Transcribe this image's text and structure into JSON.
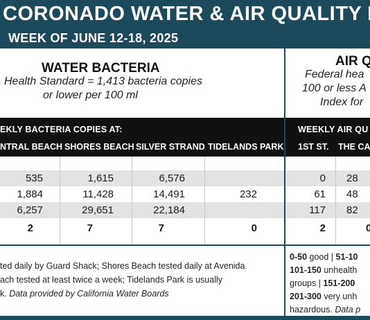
{
  "header": {
    "title": "CORONADO WATER & AIR QUALITY R",
    "week": "WEEK OF JUNE 12-18, 2025"
  },
  "water": {
    "title": "WATER BACTERIA",
    "standard_line1": "Health Standard  = 1,413 bacteria copies",
    "standard_line2": "or lower per 100 ml",
    "table_header": "EKLY BACTERIA COPIES AT:",
    "columns": [
      "NTRAL BEACH",
      "SHORES BEACH",
      "SILVER STRAND",
      "TIDELANDS PARK"
    ],
    "rows": [
      [
        "535",
        "1,615",
        "6,576",
        ""
      ],
      [
        "1,884",
        "11,428",
        "14,491",
        "232"
      ],
      [
        "6,257",
        "29,651",
        "22,184",
        ""
      ],
      [
        "2",
        "7",
        "7",
        "0"
      ]
    ],
    "note_line1": "ted daily by Guard Shack; Shores Beach tested daily at Avenida",
    "note_line2": "ach tested at least twice a week; Tidelands Park is usually",
    "note_line3_plain": "k. ",
    "note_line3_italic": "Data provided by California Water Boards"
  },
  "air": {
    "title": "AIR Q",
    "standard_line1": "Federal hea",
    "standard_line2": "100 or less A",
    "standard_line3": "Index for",
    "table_header": "WEEKLY AIR QU",
    "columns": [
      "1ST ST.",
      "THE CAY"
    ],
    "rows": [
      [
        "0",
        "28"
      ],
      [
        "61",
        "48"
      ],
      [
        "117",
        "82"
      ],
      [
        "2",
        "0"
      ]
    ],
    "scale_line1_bold": "0-50",
    "scale_line1_rest": " good | ",
    "scale_line1_bold2": "51-10",
    "scale_line2_bold": "101-150",
    "scale_line2_rest": " unhealth",
    "scale_line3_rest": "groups | ",
    "scale_line3_bold": "151-200",
    "scale_line4_bold": "201-300",
    "scale_line4_rest": " very unh",
    "scale_line5_rest": "hazardous. ",
    "scale_line5_italic": "Data p"
  },
  "colors": {
    "header_bg": "#1b4a5a",
    "table_header_bg": "#111111",
    "row_shade": "#e3e3e3"
  }
}
